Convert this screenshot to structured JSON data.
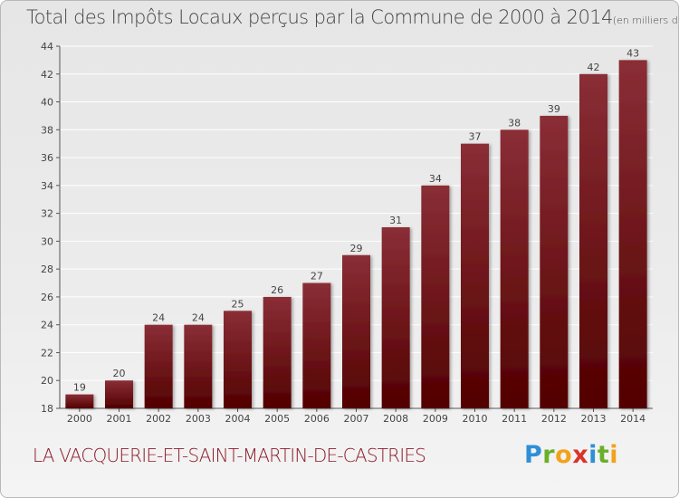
{
  "header": {
    "title": "Total des Impôts Locaux perçus par la Commune de 2000 à 2014",
    "unit": "(en milliers d'€)"
  },
  "footer": {
    "commune": "LA VACQUERIE-ET-SAINT-MARTIN-DE-CASTRIES"
  },
  "brand": {
    "letters": [
      "P",
      "r",
      "o",
      "x",
      "i",
      "t",
      "i"
    ],
    "colors": [
      "#2f8fd6",
      "#6aaf2a",
      "#f2a21b",
      "#d9342b",
      "#2f8fd6",
      "#6aaf2a",
      "#f2a21b"
    ]
  },
  "colors": {
    "bar_top": "#8a2e36",
    "bar_bottom": "#520000",
    "axis": "#555555",
    "grid": "#ffffff",
    "label": "#444444"
  },
  "chart_data": {
    "type": "bar",
    "title": "Total des Impôts Locaux perçus par la Commune de 2000 à 2014",
    "xlabel": "",
    "ylabel": "",
    "categories": [
      "2000",
      "2001",
      "2002",
      "2003",
      "2004",
      "2005",
      "2006",
      "2007",
      "2008",
      "2009",
      "2010",
      "2011",
      "2012",
      "2013",
      "2014"
    ],
    "values": [
      19,
      20,
      24,
      24,
      25,
      26,
      27,
      29,
      31,
      34,
      37,
      38,
      39,
      42,
      43
    ],
    "ylim": [
      18,
      44
    ],
    "yticks": [
      18,
      20,
      22,
      24,
      26,
      28,
      30,
      32,
      34,
      36,
      38,
      40,
      42,
      44
    ],
    "grid": true,
    "legend": "none"
  }
}
